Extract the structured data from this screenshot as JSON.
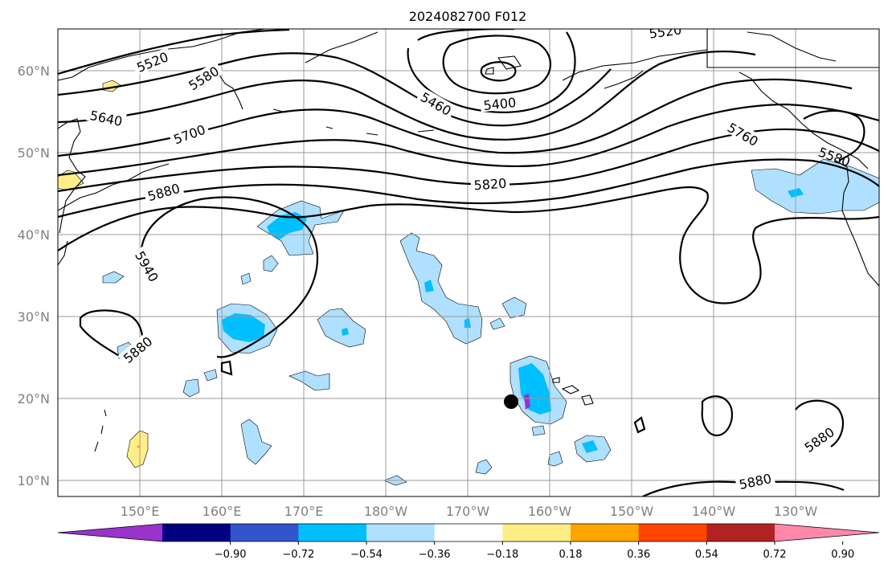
{
  "title": "2024082700 F012",
  "lat_labels": [
    "10°N",
    "20°N",
    "30°N",
    "40°N",
    "50°N",
    "60°N"
  ],
  "lon_labels": [
    "150°E",
    "160°E",
    "170°E",
    "180°W",
    "170°W",
    "160°W",
    "150°W",
    "140°W",
    "130°W"
  ],
  "contour_labels": [
    "5520",
    "5580",
    "5640",
    "5700",
    "5880",
    "5940",
    "5880",
    "5460",
    "5400",
    "5520",
    "5820",
    "5760",
    "5580",
    "5880",
    "5880"
  ],
  "colorbar": {
    "ticks": [
      "−0.90",
      "−0.72",
      "−0.54",
      "−0.36",
      "−0.18",
      "0.18",
      "0.36",
      "0.54",
      "0.72",
      "0.90"
    ],
    "colors": [
      "#9933cc",
      "#000080",
      "#3355cc",
      "#00bfff",
      "#b0e0ff",
      "#ffffff",
      "#ffee88",
      "#ffa500",
      "#ff4500",
      "#b22222",
      "#ff88aa"
    ]
  },
  "colors": {
    "light_blue": "#b0e0ff",
    "medium_blue": "#00bfff",
    "purple": "#9933cc",
    "yellow": "#ffee88",
    "orange": "#ffa500"
  }
}
